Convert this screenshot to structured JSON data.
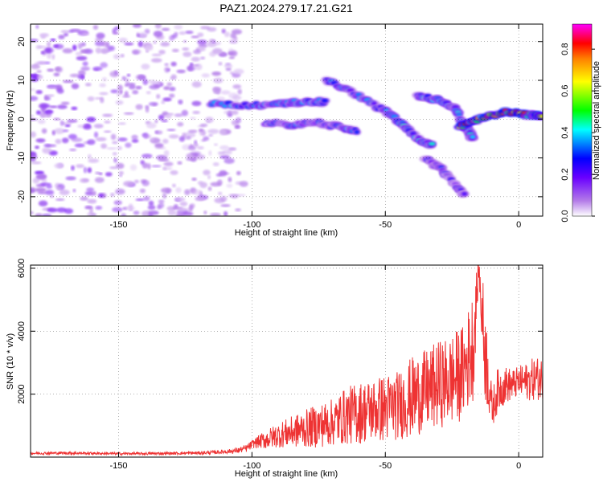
{
  "title": "PAZ1.2024.279.17.21.G21",
  "chart_data": [
    {
      "type": "heatmap",
      "xlabel": "Height of straight line (km)",
      "ylabel": "Frequency (Hz)",
      "xlim": [
        -183,
        9
      ],
      "ylim": [
        -25,
        24.5
      ],
      "xticks": [
        -150,
        -100,
        -50,
        0
      ],
      "yticks": [
        -20,
        -10,
        0,
        10,
        20
      ],
      "colorbar": {
        "label": "Normalized spectral amplitude",
        "range": [
          0,
          0.92
        ],
        "ticks": [
          0.0,
          0.2,
          0.4,
          0.6,
          0.8
        ],
        "colors": [
          "#ffffff",
          "#b37be8",
          "#6a00ff",
          "#0000ff",
          "#00ffff",
          "#00ff00",
          "#ffff00",
          "#ff8000",
          "#ff0000",
          "#ff00ff"
        ]
      },
      "signal_traces": [
        {
          "x": [
            -115,
            -100,
            -90,
            -80,
            -72
          ],
          "y": [
            4,
            3.5,
            4,
            4.5,
            4.5
          ],
          "amplitude": 0.4
        },
        {
          "x": [
            -95,
            -85,
            -75,
            -68,
            -60
          ],
          "y": [
            -1,
            -1.5,
            -1,
            -2,
            -3
          ],
          "amplitude": 0.35
        },
        {
          "x": [
            -72,
            -60,
            -50,
            -44,
            -38,
            -32
          ],
          "y": [
            10,
            6,
            2,
            -1,
            -5,
            -7
          ],
          "amplitude": 0.45
        },
        {
          "x": [
            -38,
            -30,
            -24,
            -20,
            -17
          ],
          "y": [
            6,
            5,
            3,
            -2,
            -5
          ],
          "amplitude": 0.45
        },
        {
          "x": [
            -22,
            -15,
            -5,
            5,
            9
          ],
          "y": [
            -2,
            0,
            2,
            1,
            1
          ],
          "amplitude": 0.9
        },
        {
          "x": [
            -35,
            -29,
            -24,
            -20
          ],
          "y": [
            -10,
            -13,
            -17,
            -20
          ],
          "amplitude": 0.3
        }
      ],
      "noise_region": {
        "x_range": [
          -183,
          -103
        ],
        "y_range": [
          -25,
          24.5
        ]
      }
    },
    {
      "type": "line",
      "xlabel": "Height of straight line (km)",
      "ylabel": "SNR (10 * v/v)",
      "xlim": [
        -183,
        9
      ],
      "ylim": [
        0,
        6100
      ],
      "xticks": [
        -150,
        -100,
        -50,
        0
      ],
      "yticks": [
        2000,
        4000,
        6000
      ],
      "color": "#ee3333",
      "series": [
        {
          "x": [
            -183,
            -170,
            -160,
            -150,
            -140,
            -130,
            -120,
            -112,
            -106,
            -102,
            -99,
            -95,
            -90,
            -85,
            -80,
            -75,
            -70,
            -65,
            -60,
            -55,
            -50,
            -45,
            -40,
            -35,
            -30,
            -27,
            -24,
            -21,
            -19,
            -17,
            -15,
            -13,
            -10,
            -8,
            -5,
            -2,
            0,
            3,
            6,
            9
          ],
          "values": [
            120,
            130,
            120,
            110,
            110,
            120,
            130,
            160,
            200,
            280,
            450,
            550,
            700,
            800,
            900,
            1000,
            1100,
            1300,
            1400,
            1500,
            1550,
            1650,
            1900,
            2100,
            2300,
            2400,
            2500,
            2700,
            3100,
            3600,
            6000,
            3700,
            1500,
            2100,
            2300,
            2300,
            2400,
            2400,
            2500,
            2500
          ],
          "amplitude": [
            40,
            45,
            40,
            40,
            40,
            45,
            50,
            60,
            80,
            120,
            150,
            300,
            400,
            500,
            600,
            700,
            750,
            900,
            1000,
            1000,
            1100,
            1100,
            1300,
            1300,
            1400,
            1400,
            1500,
            1500,
            1600,
            1800,
            300,
            1800,
            600,
            700,
            600,
            500,
            500,
            600,
            700,
            700
          ]
        }
      ]
    }
  ]
}
